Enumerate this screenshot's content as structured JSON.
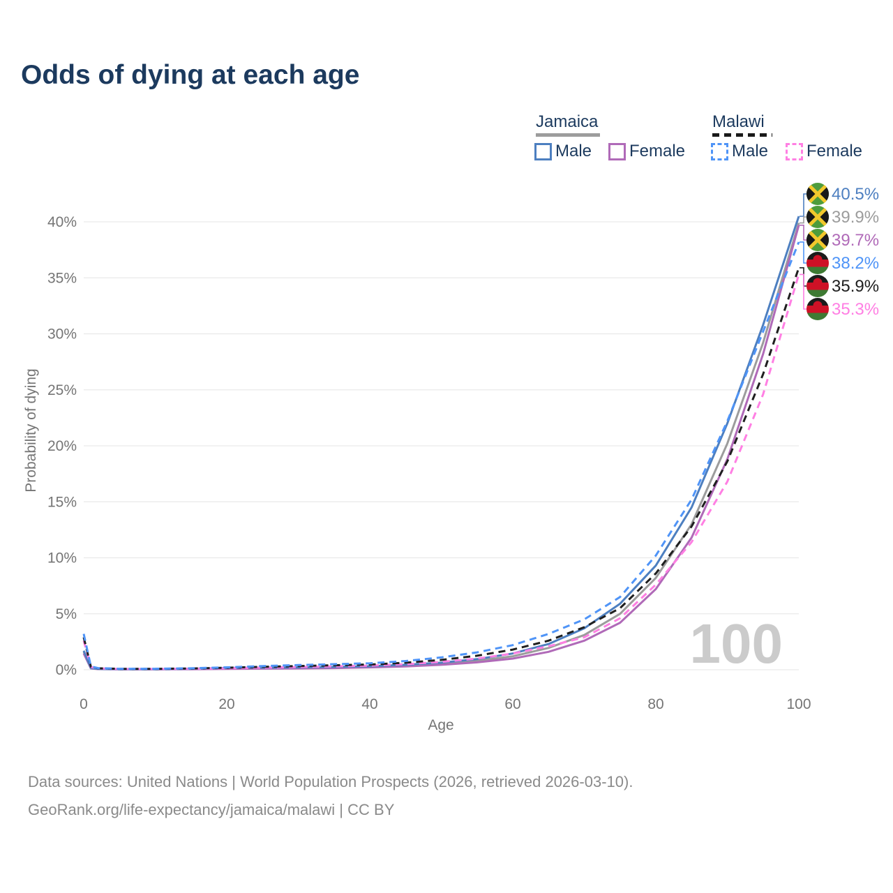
{
  "title": "Odds of dying at each age",
  "legend": {
    "position": "top-right",
    "groups": [
      {
        "label": "Jamaica",
        "line_style": "solid",
        "underline_color": "#9c9c9c",
        "items": [
          {
            "label": "Male",
            "color": "#4d7fc0"
          },
          {
            "label": "Female",
            "color": "#b06ab8"
          }
        ]
      },
      {
        "label": "Malawi",
        "line_style": "dashed",
        "underline_color": "#1a1a1a",
        "items": [
          {
            "label": "Male",
            "color": "#4f94f7"
          },
          {
            "label": "Female",
            "color": "#ff7fe3"
          }
        ]
      }
    ]
  },
  "watermark": "100",
  "footer": {
    "line1": "Data sources: United Nations | World Population Prospects (2026, retrieved 2026-03-10).",
    "line2": "GeoRank.org/life-expectancy/jamaica/malawi | CC BY"
  },
  "chart_data": {
    "type": "line",
    "title": "Odds of dying at each age",
    "xlabel": "Age",
    "ylabel": "Probability of dying",
    "xlim": [
      0,
      100
    ],
    "ylim": [
      0,
      40
    ],
    "xticks": [
      0,
      20,
      40,
      60,
      80,
      100
    ],
    "yticks": [
      0,
      5,
      10,
      15,
      20,
      25,
      30,
      35,
      40
    ],
    "ytick_suffix": "%",
    "grid": "horizontal",
    "ages": [
      0,
      1,
      2,
      5,
      10,
      15,
      20,
      25,
      30,
      35,
      40,
      45,
      50,
      55,
      60,
      65,
      70,
      75,
      80,
      85,
      90,
      95,
      100
    ],
    "series": [
      {
        "id": "jamaica-male",
        "country": "Jamaica",
        "sex": "male",
        "flag": "jamaica",
        "color": "#4d7fc0",
        "dash": false,
        "end_label": "40.5%",
        "values": [
          1.7,
          0.15,
          0.08,
          0.05,
          0.05,
          0.09,
          0.16,
          0.19,
          0.21,
          0.25,
          0.31,
          0.44,
          0.63,
          0.95,
          1.45,
          2.3,
          3.7,
          5.9,
          9.3,
          14.5,
          22.0,
          30.8,
          40.5
        ]
      },
      {
        "id": "jamaica-both",
        "country": "Jamaica",
        "sex": "both",
        "flag": "jamaica",
        "color": "#9c9c9c",
        "dash": false,
        "end_label": "39.9%",
        "values": [
          1.6,
          0.13,
          0.07,
          0.045,
          0.045,
          0.07,
          0.12,
          0.14,
          0.16,
          0.2,
          0.26,
          0.37,
          0.53,
          0.8,
          1.2,
          1.95,
          3.1,
          5.0,
          8.2,
          13.0,
          20.2,
          29.2,
          39.9
        ]
      },
      {
        "id": "jamaica-female",
        "country": "Jamaica",
        "sex": "female",
        "flag": "jamaica",
        "color": "#b06ab8",
        "dash": false,
        "end_label": "39.7%",
        "values": [
          1.45,
          0.12,
          0.06,
          0.04,
          0.04,
          0.05,
          0.08,
          0.1,
          0.12,
          0.15,
          0.21,
          0.3,
          0.44,
          0.66,
          1.0,
          1.6,
          2.6,
          4.2,
          7.2,
          11.8,
          18.8,
          28.2,
          39.7
        ]
      },
      {
        "id": "malawi-male",
        "country": "Malawi",
        "sex": "male",
        "flag": "malawi",
        "color": "#4f94f7",
        "dash": true,
        "end_label": "38.2%",
        "values": [
          3.2,
          0.3,
          0.15,
          0.09,
          0.09,
          0.13,
          0.22,
          0.33,
          0.42,
          0.5,
          0.58,
          0.78,
          1.1,
          1.55,
          2.2,
          3.2,
          4.5,
          6.5,
          10.2,
          15.2,
          22.2,
          30.2,
          38.2
        ]
      },
      {
        "id": "malawi-both",
        "country": "Malawi",
        "sex": "both",
        "flag": "malawi",
        "color": "#1f1f1f",
        "dash": true,
        "end_label": "35.9%",
        "values": [
          2.9,
          0.27,
          0.13,
          0.08,
          0.08,
          0.11,
          0.18,
          0.26,
          0.33,
          0.4,
          0.47,
          0.63,
          0.88,
          1.25,
          1.8,
          2.6,
          3.8,
          5.5,
          8.6,
          12.8,
          18.6,
          26.4,
          35.9
        ]
      },
      {
        "id": "malawi-female",
        "country": "Malawi",
        "sex": "female",
        "flag": "malawi",
        "color": "#ff7fe3",
        "dash": true,
        "end_label": "35.3%",
        "values": [
          2.6,
          0.24,
          0.12,
          0.07,
          0.07,
          0.09,
          0.14,
          0.19,
          0.24,
          0.3,
          0.37,
          0.5,
          0.7,
          1.0,
          1.45,
          2.1,
          2.9,
          4.6,
          7.6,
          11.4,
          16.8,
          24.6,
          35.3
        ]
      }
    ]
  }
}
